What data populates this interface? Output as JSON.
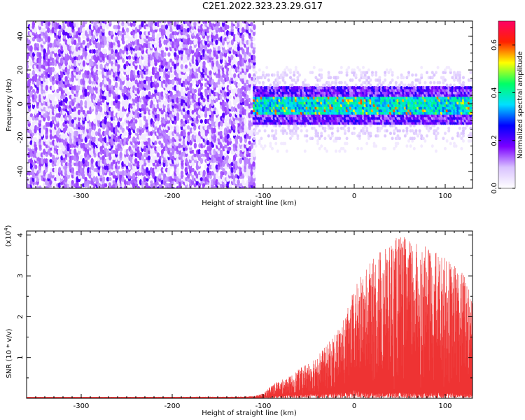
{
  "title": "C2E1.2022.323.23.29.G17",
  "chart_data": [
    {
      "type": "heatmap",
      "title": "C2E1.2022.323.23.29.G17",
      "xlabel": "Height of straight line (km)",
      "ylabel": "Frequency (Hz)",
      "xlim": [
        -360,
        130
      ],
      "ylim": [
        -50,
        49
      ],
      "xticks": [
        -300,
        -200,
        -100,
        0,
        100
      ],
      "yticks": [
        -40,
        -20,
        0,
        20,
        40
      ],
      "description_regions": [
        {
          "x_range": [
            -360,
            -110
          ],
          "freq_range": [
            -50,
            49
          ],
          "typical_amplitude": 0.1
        },
        {
          "x_range": [
            -110,
            130
          ],
          "freq_range": [
            -12,
            10
          ],
          "typical_amplitude": 0.3,
          "peak_amplitude": 0.6
        }
      ],
      "colorbar": {
        "label": "Normalized spectral amplitude",
        "range": [
          0.0,
          0.7
        ],
        "ticks": [
          0.0,
          0.2,
          0.4,
          0.6
        ],
        "colors": [
          "#ffffff",
          "#d9c2ff",
          "#7b00ff",
          "#0000ff",
          "#00e0ff",
          "#00ff66",
          "#ffff00",
          "#ff2200",
          "#ff0066"
        ]
      }
    },
    {
      "type": "area",
      "xlabel": "Height of straight line (km)",
      "ylabel": "SNR (10 * v/v)",
      "multiplier_label": "(x10",
      "multiplier_exp": "4",
      "multiplier_close": ")",
      "xlim": [
        -360,
        130
      ],
      "ylim": [
        0,
        4.1
      ],
      "xticks": [
        -300,
        -200,
        -100,
        0,
        100
      ],
      "yticks": [
        1,
        2,
        3,
        4
      ],
      "color": "#ee3333",
      "envelope": {
        "x": [
          -360,
          -130,
          -110,
          -100,
          -90,
          -70,
          -50,
          -30,
          -10,
          0,
          10,
          30,
          50,
          70,
          90,
          110,
          130
        ],
        "upper": [
          0.03,
          0.04,
          0.06,
          0.12,
          0.35,
          0.55,
          0.9,
          1.3,
          2.0,
          2.7,
          3.1,
          3.7,
          4.0,
          3.8,
          3.6,
          3.3,
          2.9
        ],
        "lower": [
          0.0,
          0.0,
          0.0,
          0.02,
          0.05,
          0.08,
          0.1,
          0.12,
          0.15,
          0.2,
          0.15,
          0.12,
          0.15,
          0.12,
          0.15,
          0.12,
          0.1
        ]
      }
    }
  ]
}
